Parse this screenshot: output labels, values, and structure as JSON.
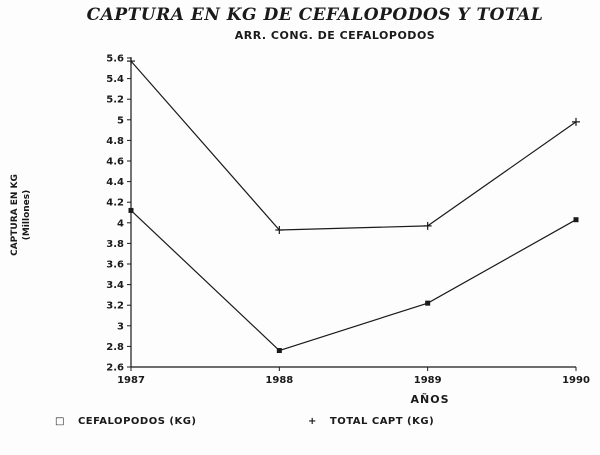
{
  "title": "CAPTURA EN KG DE CEFALOPODOS Y TOTAL",
  "subtitle": "ARR. CONG. DE CEFALOPODOS",
  "y_axis_label_line1": "CAPTURA EN KG",
  "y_axis_label_line2": "(Millones)",
  "x_axis_label": "AÑOS",
  "legend": [
    {
      "marker": "□",
      "label": "CEFALOPODOS (KG)"
    },
    {
      "marker": "+",
      "label": "TOTAL CAPT (KG)"
    }
  ],
  "colors": {
    "line": "#1a1a1a",
    "background": "#fdfdfd"
  },
  "chart_data": {
    "type": "line",
    "title": "CAPTURA EN KG DE CEFALOPODOS Y TOTAL",
    "subtitle": "ARR. CONG. DE CEFALOPODOS",
    "xlabel": "AÑOS",
    "ylabel": "CAPTURA EN KG (Millones)",
    "categories": [
      "1987",
      "1988",
      "1989",
      "1990"
    ],
    "series": [
      {
        "name": "CEFALOPODOS (KG)",
        "marker": "square",
        "values": [
          4.12,
          2.76,
          3.22,
          4.03
        ]
      },
      {
        "name": "TOTAL CAPT (KG)",
        "marker": "plus",
        "values": [
          5.57,
          3.93,
          3.97,
          4.98
        ]
      }
    ],
    "ylim": [
      2.6,
      5.6
    ],
    "ytick_step": 0.2,
    "grid": false,
    "legend_position": "bottom"
  }
}
